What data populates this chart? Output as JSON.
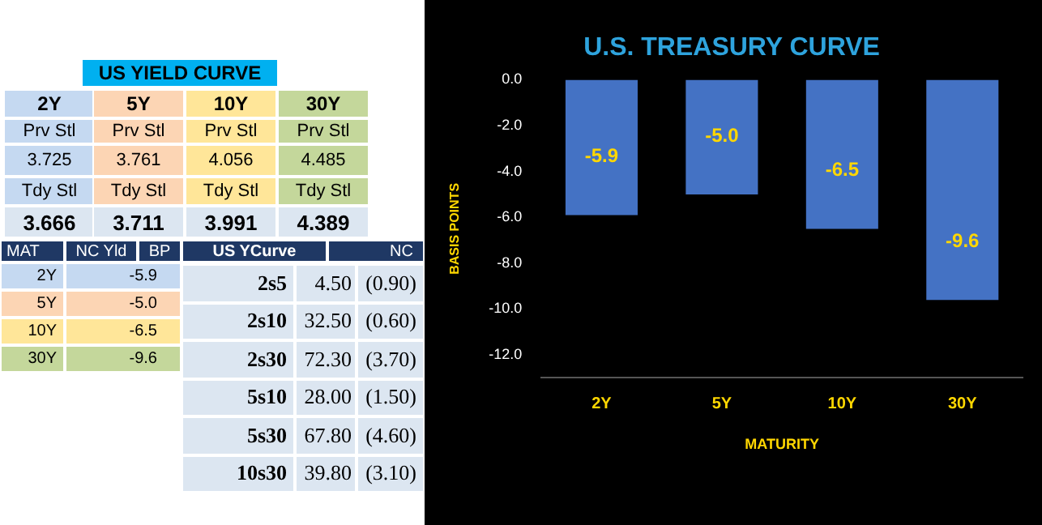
{
  "chart_data": [
    {
      "type": "other",
      "title": "US YIELD CURVE",
      "annotations": [
        "2Y",
        "5Y",
        "10Y",
        "30Y",
        "Prv Stl",
        "Prv Stl",
        "Prv Stl",
        "Prv Stl",
        "3.725",
        "3.761",
        "4.056",
        "4.485",
        "Tdy Stl",
        "Tdy Stl",
        "Tdy Stl",
        "Tdy Stl",
        "3.666",
        "3.711",
        "3.991",
        "4.389",
        "MAT",
        "NC Yld",
        "BP",
        "2Y",
        "-5.9",
        "5Y",
        "-5.0",
        "10Y",
        "-6.5",
        "30Y",
        "-9.6",
        "US YCurve",
        "NC",
        "2s5",
        "4.50",
        "(0.90)",
        "2s10",
        "32.50",
        "(0.60)",
        "2s30",
        "72.30",
        "(3.70)",
        "5s10",
        "28.00",
        "(1.50)",
        "5s30",
        "67.80",
        "(4.60)",
        "10s30",
        "39.80",
        "(3.10)"
      ]
    },
    {
      "type": "bar",
      "title": "U.S. TREASURY CURVE",
      "xlabel": "MATURITY",
      "ylabel": "BASIS POINTS",
      "categories": [
        "2Y",
        "5Y",
        "10Y",
        "30Y"
      ],
      "values": [
        -5.9,
        -5.0,
        -6.5,
        -9.6
      ],
      "color": "#4472c4",
      "ylim": [
        -13,
        0
      ],
      "yticks": [
        {
          "value": 0,
          "label": "0.0"
        },
        {
          "value": -2,
          "label": "-2.0"
        },
        {
          "value": -4,
          "label": "-4.0"
        },
        {
          "value": -6,
          "label": "-6.0"
        },
        {
          "value": -8,
          "label": "-8.0"
        },
        {
          "value": -10,
          "label": "-10.0"
        },
        {
          "value": -12,
          "label": "-12.0"
        }
      ],
      "value_labels": [
        "-5.9",
        "-5.0",
        "-6.5",
        "-9.6"
      ],
      "grid": false,
      "legend": false
    }
  ]
}
